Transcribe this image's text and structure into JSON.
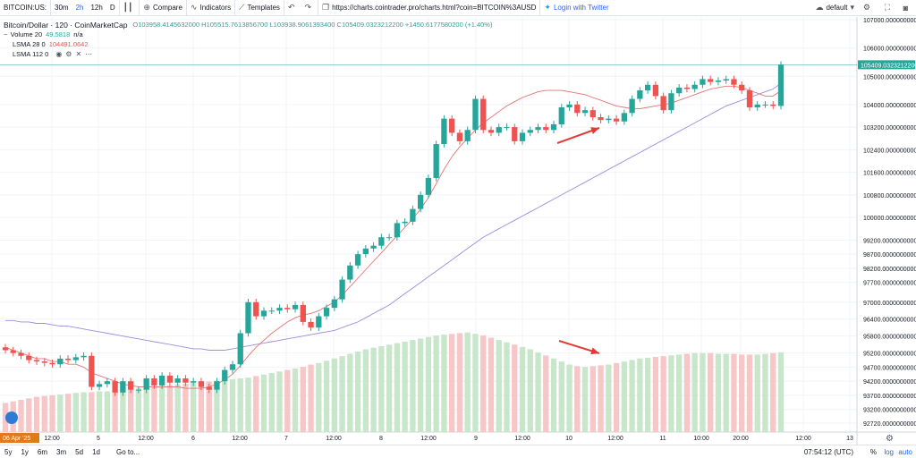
{
  "toolbar": {
    "symbol": "BITCOIN:US:",
    "intervals": [
      "30m",
      "2h",
      "12h",
      "D"
    ],
    "active_interval": 1,
    "compare_label": "Compare",
    "indicators_label": "Indicators",
    "templates_label": "Templates",
    "url": "https://charts.cointrader.pro/charts.html?coin=BITCOIN%3AUSD",
    "twitter_label": "Login with Twitter",
    "layout_label": "default"
  },
  "legend": {
    "title": "Bitcoin/Dollar · 120 · CoinMarketCap",
    "ohlc": "O103958.4145632000 H105515.7613856700 L103938.9061393400 C105409.0323212200 +1450.6177580200 (+1.40%)",
    "volume_label": "Volume 20",
    "volume_value": "49.5818",
    "volume_na": "n/a",
    "lsma1_label": "LSMA 28 0",
    "lsma1_value": "104491.0642",
    "lsma2_label": "LSMA 112 0"
  },
  "bottom": {
    "ranges": [
      "5y",
      "1y",
      "6m",
      "3m",
      "5d",
      "1d"
    ],
    "goto_label": "Go to...",
    "clock": "07:54:12 (UTC)",
    "pct_label": "%",
    "log_label": "log",
    "auto_label": "auto"
  },
  "colors": {
    "up": "#26a69a",
    "down": "#ef5350",
    "vol_up": "#c8e6c9",
    "vol_down": "#f7c6c6",
    "lsma_short": "#e57373",
    "lsma_long": "#9c8ce0",
    "last_price_bg": "#26a69a",
    "annotation": "#e53935"
  },
  "chart_data": {
    "type": "candlestick",
    "y_axis": {
      "min": 92400,
      "max": 107100,
      "ticks": [
        107000,
        106000,
        105000,
        104000,
        103200,
        102400,
        101600,
        100800,
        100000,
        99200,
        98700,
        98200,
        97700,
        97000,
        96400,
        95800,
        95200,
        94700,
        94200,
        93700,
        93200,
        92720
      ],
      "tick_labels": [
        "107000.0000000000",
        "106000.0000000000",
        "105000.0000000000",
        "104000.0000000000",
        "103200.0000000000",
        "102400.0000000000",
        "101600.0000000000",
        "100800.0000000000",
        "100000.0000000000",
        "99200.0000000000",
        "98700.0000000000",
        "98200.0000000000",
        "97700.0000000000",
        "97000.0000000000",
        "96400.0000000000",
        "95800.0000000000",
        "95200.0000000000",
        "94700.0000000000",
        "94200.0000000000",
        "93700.0000000000",
        "93200.0000000000",
        "92720.0000000000"
      ]
    },
    "last_price_label": "105409.0323212200",
    "last_price": 105409,
    "x_ticks": [
      "06 Apr '25",
      "12:00",
      "5",
      "12:00",
      "6",
      "12:00",
      "7",
      "12:00",
      "8",
      "12:00",
      "9",
      "12:00",
      "10",
      "12:00",
      "11",
      "10:00",
      "20:00",
      "12:00",
      "13"
    ],
    "opens": [
      95400,
      95300,
      95200,
      95100,
      94950,
      94900,
      94850,
      94800,
      95000,
      94950,
      95050,
      95100,
      94000,
      94100,
      94200,
      93800,
      94200,
      93900,
      93900,
      94300,
      94050,
      94400,
      94150,
      94300,
      94150,
      94200,
      94000,
      93900,
      94200,
      94600,
      94800,
      95900,
      97000,
      96500,
      96700,
      96700,
      96800,
      96750,
      96900,
      96300,
      96100,
      96500,
      96800,
      97100,
      97800,
      98300,
      98700,
      98900,
      99000,
      99300,
      99300,
      99800,
      99850,
      100300,
      100800,
      101400,
      102600,
      103500,
      103000,
      102700,
      103100,
      104200,
      103100,
      103000,
      103200,
      103200,
      102700,
      103000,
      103100,
      103200,
      103100,
      103300,
      103900,
      104000,
      103700,
      103800,
      103550,
      103450,
      103500,
      103400,
      103700,
      104200,
      104500,
      104700,
      104300,
      103800,
      104400,
      104600,
      104550,
      104700,
      104900,
      104800,
      104850,
      104900,
      104700,
      104500,
      103900,
      104000,
      104000,
      103950
    ],
    "closes": [
      95300,
      95200,
      95100,
      94950,
      94900,
      94850,
      94800,
      95000,
      94950,
      95050,
      95100,
      94000,
      94100,
      94200,
      93800,
      94200,
      93900,
      93900,
      94300,
      94050,
      94400,
      94150,
      94300,
      94150,
      94200,
      94000,
      93900,
      94200,
      94600,
      94800,
      95900,
      97000,
      96500,
      96700,
      96700,
      96800,
      96750,
      96900,
      96300,
      96100,
      96500,
      96800,
      97100,
      97800,
      98300,
      98700,
      98900,
      99000,
      99300,
      99300,
      99800,
      99850,
      100300,
      100800,
      101400,
      102600,
      103500,
      103000,
      102700,
      103100,
      104200,
      103100,
      103000,
      103200,
      103200,
      102700,
      103000,
      103100,
      103200,
      103100,
      103300,
      103900,
      104000,
      103700,
      103800,
      103550,
      103450,
      103500,
      103400,
      103700,
      104200,
      104500,
      104700,
      104300,
      103800,
      104400,
      104600,
      104550,
      104700,
      104900,
      104800,
      104850,
      104900,
      104700,
      104500,
      103900,
      104000,
      104000,
      103950,
      105409
    ],
    "lsma_short": [
      95400,
      95300,
      95200,
      95100,
      95000,
      95000,
      94900,
      94900,
      94800,
      94800,
      94700,
      94500,
      94400,
      94300,
      94200,
      94100,
      94050,
      94000,
      94000,
      94000,
      94000,
      94000,
      94000,
      93950,
      93950,
      93950,
      94000,
      94100,
      94250,
      94450,
      94750,
      95100,
      95400,
      95650,
      95900,
      96100,
      96300,
      96450,
      96550,
      96600,
      96700,
      96850,
      97000,
      97250,
      97550,
      97850,
      98150,
      98450,
      98750,
      99050,
      99350,
      99650,
      99950,
      100300,
      100700,
      101200,
      101700,
      102150,
      102500,
      102800,
      103100,
      103350,
      103550,
      103750,
      103950,
      104100,
      104250,
      104350,
      104450,
      104500,
      104500,
      104500,
      104450,
      104400,
      104350,
      104250,
      104150,
      104050,
      103950,
      103900,
      103850,
      103850,
      103900,
      103950,
      104000,
      104050,
      104150,
      104250,
      104350,
      104450,
      104550,
      104600,
      104650,
      104650,
      104600,
      104500,
      104400,
      104300,
      104300,
      104491
    ],
    "lsma_long": [
      96350,
      96350,
      96300,
      96300,
      96250,
      96250,
      96200,
      96150,
      96150,
      96100,
      96050,
      96000,
      95950,
      95900,
      95850,
      95800,
      95750,
      95700,
      95650,
      95600,
      95550,
      95500,
      95450,
      95400,
      95350,
      95350,
      95300,
      95300,
      95300,
      95350,
      95400,
      95450,
      95500,
      95550,
      95600,
      95650,
      95700,
      95750,
      95800,
      95850,
      95900,
      95950,
      96000,
      96100,
      96200,
      96300,
      96450,
      96600,
      96750,
      96900,
      97100,
      97300,
      97500,
      97700,
      97900,
      98100,
      98300,
      98500,
      98700,
      98900,
      99100,
      99300,
      99450,
      99600,
      99750,
      99900,
      100050,
      100200,
      100350,
      100500,
      100650,
      100800,
      100950,
      101100,
      101250,
      101400,
      101550,
      101700,
      101850,
      102000,
      102150,
      102300,
      102450,
      102600,
      102750,
      102900,
      103050,
      103200,
      103350,
      103500,
      103650,
      103800,
      103950,
      104050,
      104150,
      104250,
      104350,
      104450,
      104550,
      104750
    ],
    "volumes": [
      38,
      40,
      42,
      44,
      46,
      47,
      48,
      49,
      50,
      51,
      52,
      52,
      53,
      53,
      54,
      55,
      56,
      57,
      58,
      59,
      60,
      61,
      62,
      63,
      64,
      65,
      66,
      67,
      68,
      69,
      70,
      71,
      73,
      75,
      77,
      79,
      81,
      83,
      85,
      88,
      90,
      93,
      96,
      99,
      102,
      105,
      108,
      110,
      112,
      114,
      116,
      118,
      120,
      122,
      124,
      126,
      127,
      128,
      129,
      130,
      128,
      126,
      123,
      120,
      117,
      114,
      111,
      108,
      104,
      100,
      96,
      92,
      88,
      86,
      85,
      86,
      87,
      88,
      90,
      92,
      94,
      96,
      97,
      98,
      99,
      100,
      101,
      102,
      103,
      103,
      103,
      102,
      102,
      102,
      101,
      101,
      101,
      102,
      103,
      104
    ],
    "volume_max": 140
  },
  "annotations": [
    {
      "type": "arrow",
      "from": [
        623,
        160
      ],
      "to": [
        670,
        143
      ]
    },
    {
      "type": "arrow",
      "from": [
        625,
        381
      ],
      "to": [
        670,
        395
      ]
    }
  ]
}
